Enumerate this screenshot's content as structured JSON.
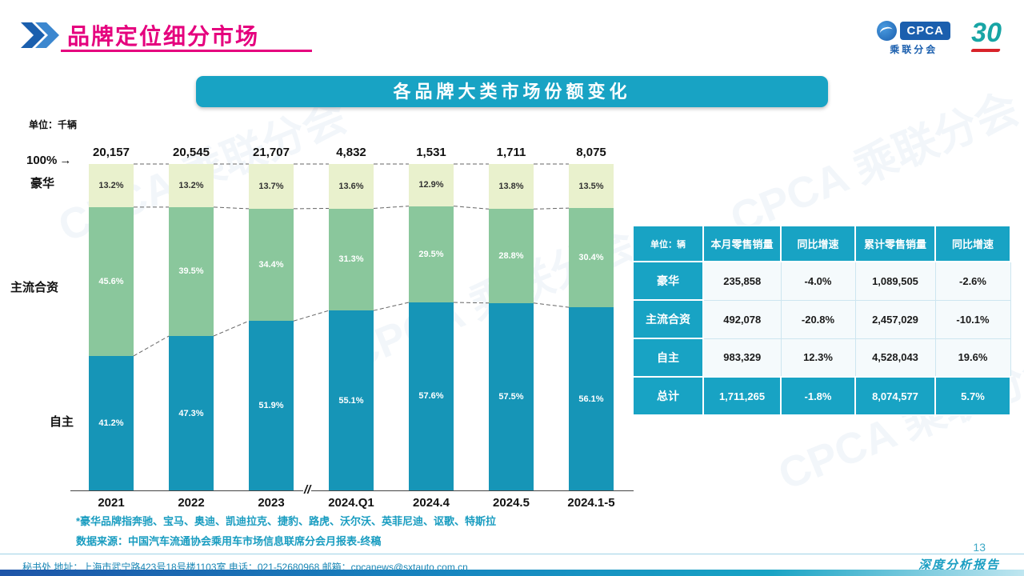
{
  "page": {
    "title": "品牌定位细分市场",
    "banner": "各品牌大类市场份额变化",
    "page_number": "13",
    "report_tag": "深度分析报告",
    "footer": "秘书处   地址：上海市武宁路423号18号楼1103室   电话：021-52680968    邮箱：cpcanews@sxtauto.com.cn",
    "note_luxury": "*豪华品牌指奔驰、宝马、奥迪、凯迪拉克、捷豹、路虎、沃尔沃、英菲尼迪、讴歌、特斯拉",
    "note_source": "数据来源：中国汽车流通协会乘用车市场信息联席分会月报表-终稿",
    "watermark": "CPCA 乘联分会"
  },
  "logo": {
    "cpca": "CPCA",
    "name": "乘联分会",
    "anniversary": "30"
  },
  "chart_data": {
    "type": "bar",
    "stacked": true,
    "unit_label": "单位：千辆",
    "top_label": "100%",
    "axis_break": "//",
    "side_labels": [
      "豪华",
      "主流合资",
      "自主"
    ],
    "categories": [
      "2021",
      "2022",
      "2023",
      "2024.Q1",
      "2024.4",
      "2024.5",
      "2024.1-5"
    ],
    "totals": [
      "20,157",
      "20,545",
      "21,707",
      "4,832",
      "1,531",
      "1,711",
      "8,075"
    ],
    "series": [
      {
        "name": "自主",
        "color": "#1695b7",
        "label_color": "#ffffff",
        "values": [
          41.2,
          47.3,
          51.9,
          55.1,
          57.6,
          57.5,
          56.1
        ]
      },
      {
        "name": "主流合资",
        "color": "#8ac79c",
        "label_color": "#ffffff",
        "values": [
          45.6,
          39.5,
          34.4,
          31.3,
          29.5,
          28.8,
          30.4
        ]
      },
      {
        "name": "豪华",
        "color": "#e9f1cd",
        "label_color": "#333333",
        "values": [
          13.2,
          13.2,
          13.7,
          13.6,
          12.9,
          13.8,
          13.5
        ]
      }
    ],
    "ylim": [
      0,
      100
    ],
    "value_suffix": "%",
    "legend_position": "left",
    "grid": false
  },
  "table": {
    "headers": [
      "单位：辆",
      "本月零售销量",
      "同比增速",
      "累计零售销量",
      "同比增速"
    ],
    "rows": [
      {
        "label": "豪华",
        "cells": [
          "235,858",
          "-4.0%",
          "1,089,505",
          "-2.6%"
        ],
        "is_total": false
      },
      {
        "label": "主流合资",
        "cells": [
          "492,078",
          "-20.8%",
          "2,457,029",
          "-10.1%"
        ],
        "is_total": false
      },
      {
        "label": "自主",
        "cells": [
          "983,329",
          "12.3%",
          "4,528,043",
          "19.6%"
        ],
        "is_total": false
      },
      {
        "label": "总计",
        "cells": [
          "1,711,265",
          "-1.8%",
          "8,074,577",
          "5.7%"
        ],
        "is_total": true
      }
    ]
  },
  "colors": {
    "accent_teal": "#18a3c4",
    "title_magenta": "#e5007e",
    "logo_blue": "#1b5fae"
  }
}
